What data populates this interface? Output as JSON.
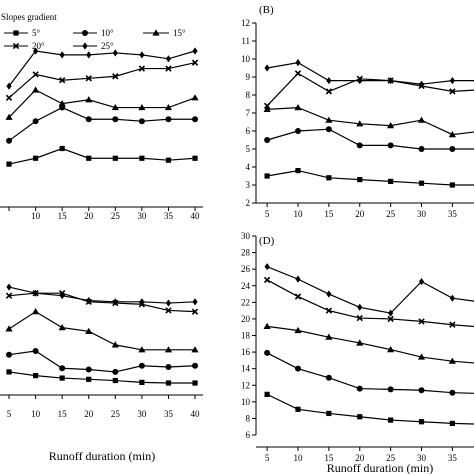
{
  "legend": {
    "title": "Slopes gradient",
    "entries": [
      {
        "label": "5°",
        "marker": "square"
      },
      {
        "label": "10°",
        "marker": "circle"
      },
      {
        "label": "15°",
        "marker": "triangle"
      },
      {
        "label": "20°",
        "marker": "x"
      },
      {
        "label": "25°",
        "marker": "diamond"
      }
    ]
  },
  "chart_data": [
    {
      "panel": "",
      "type": "line",
      "xlabel": "",
      "ylabel": "",
      "x": [
        5,
        10,
        15,
        20,
        25,
        30,
        35,
        40
      ],
      "xticks": [
        "",
        "10",
        "15",
        "20",
        "25",
        "30",
        "35",
        "40"
      ],
      "yticks": [],
      "ylim": [
        0,
        10
      ],
      "grid": false,
      "series": [
        {
          "name": "5°",
          "marker": "square",
          "values": [
            2.2,
            2.5,
            3.0,
            2.5,
            2.5,
            2.5,
            2.4,
            2.5
          ]
        },
        {
          "name": "10°",
          "marker": "circle",
          "values": [
            3.4,
            4.4,
            5.1,
            4.5,
            4.5,
            4.4,
            4.5,
            4.5
          ]
        },
        {
          "name": "15°",
          "marker": "triangle",
          "values": [
            4.6,
            6.0,
            5.3,
            5.5,
            5.1,
            5.1,
            5.1,
            5.6
          ]
        },
        {
          "name": "20°",
          "marker": "x",
          "values": [
            5.6,
            6.8,
            6.5,
            6.6,
            6.7,
            7.1,
            7.1,
            7.4
          ]
        },
        {
          "name": "25°",
          "marker": "diamond",
          "values": [
            6.2,
            8.0,
            7.8,
            7.8,
            7.9,
            7.8,
            7.6,
            8.0
          ]
        }
      ]
    },
    {
      "panel": "(B)",
      "type": "line",
      "xlabel": "",
      "ylabel": "",
      "x": [
        5,
        10,
        15,
        20,
        25,
        30,
        35,
        40
      ],
      "xticks": [
        "5",
        "10",
        "15",
        "20",
        "25",
        "30",
        "35",
        ""
      ],
      "yticks": [
        "2",
        "3",
        "4",
        "5",
        "6",
        "7",
        "8",
        "9",
        "10",
        "11",
        "12"
      ],
      "ylim": [
        2,
        12
      ],
      "grid": false,
      "series": [
        {
          "name": "5°",
          "marker": "square",
          "values": [
            3.5,
            3.8,
            3.4,
            3.3,
            3.2,
            3.1,
            3.0,
            3.0
          ]
        },
        {
          "name": "10°",
          "marker": "circle",
          "values": [
            5.5,
            6.0,
            6.1,
            5.2,
            5.2,
            5.0,
            5.0,
            5.0
          ]
        },
        {
          "name": "15°",
          "marker": "triangle",
          "values": [
            7.2,
            7.3,
            6.6,
            6.4,
            6.3,
            6.6,
            5.8,
            6.0
          ]
        },
        {
          "name": "20°",
          "marker": "x",
          "values": [
            7.4,
            9.2,
            8.2,
            8.9,
            8.8,
            8.5,
            8.2,
            8.3
          ]
        },
        {
          "name": "25°",
          "marker": "diamond",
          "values": [
            9.5,
            9.8,
            8.8,
            8.8,
            8.8,
            8.6,
            8.8,
            8.8
          ]
        }
      ]
    },
    {
      "panel": "",
      "type": "line",
      "xlabel": "Runoff duration (min)",
      "ylabel": "",
      "x": [
        5,
        10,
        15,
        20,
        25,
        30,
        35,
        40
      ],
      "xticks": [
        "5",
        "10",
        "15",
        "20",
        "25",
        "30",
        "35",
        "40"
      ],
      "yticks": [],
      "ylim": [
        0,
        10
      ],
      "grid": false,
      "series": [
        {
          "name": "5°",
          "marker": "square",
          "values": [
            0.9,
            0.6,
            0.4,
            0.3,
            0.2,
            0.05,
            0.0,
            0.0
          ]
        },
        {
          "name": "10°",
          "marker": "circle",
          "values": [
            2.3,
            2.6,
            1.2,
            1.1,
            0.9,
            1.4,
            1.3,
            1.4
          ]
        },
        {
          "name": "15°",
          "marker": "triangle",
          "values": [
            4.4,
            5.8,
            4.5,
            4.2,
            3.1,
            2.7,
            2.7,
            2.7
          ]
        },
        {
          "name": "20°",
          "marker": "x",
          "values": [
            7.1,
            7.3,
            7.3,
            6.6,
            6.5,
            6.4,
            5.9,
            5.8
          ]
        },
        {
          "name": "25°",
          "marker": "diamond",
          "values": [
            7.8,
            7.3,
            7.1,
            6.7,
            6.6,
            6.6,
            6.5,
            6.6
          ]
        }
      ]
    },
    {
      "panel": "(D)",
      "type": "line",
      "xlabel": "Runoff duration (min)",
      "ylabel": "",
      "x": [
        5,
        10,
        15,
        20,
        25,
        30,
        35,
        40
      ],
      "xticks": [
        "5",
        "10",
        "15",
        "20",
        "25",
        "30",
        "35",
        ""
      ],
      "yticks": [
        "6",
        "8",
        "10",
        "12",
        "14",
        "16",
        "18",
        "20",
        "22",
        "24",
        "26",
        "28",
        "30"
      ],
      "ylim": [
        6,
        30
      ],
      "grid": false,
      "series": [
        {
          "name": "5°",
          "marker": "square",
          "values": [
            10.9,
            9.1,
            8.6,
            8.2,
            7.8,
            7.6,
            7.4,
            7.3
          ]
        },
        {
          "name": "10°",
          "marker": "circle",
          "values": [
            15.9,
            14.0,
            12.9,
            11.6,
            11.5,
            11.4,
            11.1,
            11.0
          ]
        },
        {
          "name": "15°",
          "marker": "triangle",
          "values": [
            19.1,
            18.6,
            17.8,
            17.1,
            16.3,
            15.4,
            14.9,
            14.6
          ]
        },
        {
          "name": "20°",
          "marker": "x",
          "values": [
            24.7,
            22.7,
            21.0,
            20.1,
            20.0,
            19.7,
            19.3,
            19.0
          ]
        },
        {
          "name": "25°",
          "marker": "diamond",
          "values": [
            26.3,
            24.8,
            23.0,
            21.4,
            20.7,
            24.5,
            22.5,
            22.0
          ]
        }
      ]
    }
  ]
}
